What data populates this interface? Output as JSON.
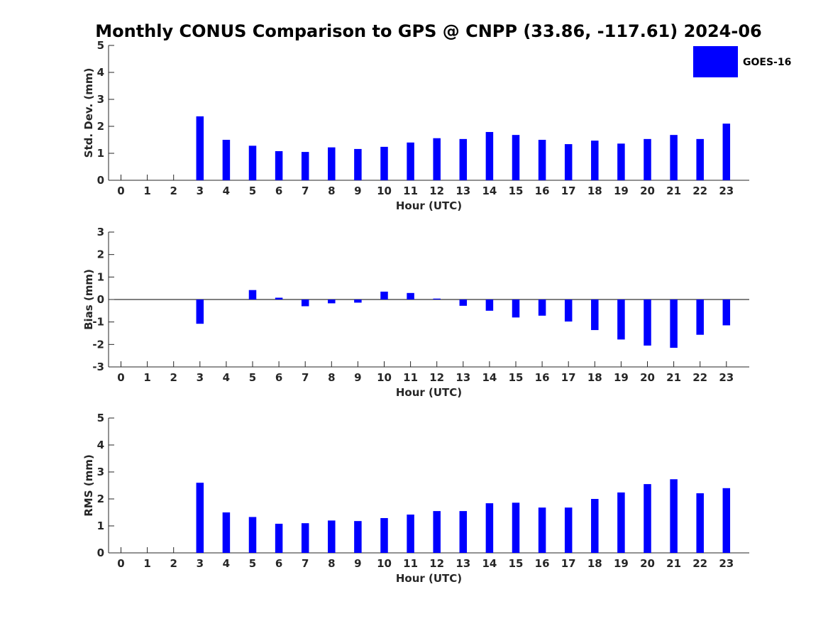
{
  "chart_data": {
    "title": "Monthly CONUS Comparison to GPS @ CNPP (33.86, -117.61) 2024-06",
    "legend": {
      "label": "GOES-16",
      "color": "#0000ff",
      "position": "top-right"
    },
    "categories": [
      "0",
      "1",
      "2",
      "3",
      "4",
      "5",
      "6",
      "7",
      "8",
      "9",
      "10",
      "11",
      "12",
      "13",
      "14",
      "15",
      "16",
      "17",
      "18",
      "19",
      "20",
      "21",
      "22",
      "23"
    ],
    "panels": [
      {
        "type": "bar",
        "ylabel": "Std. Dev. (mm)",
        "xlabel": "Hour (UTC)",
        "ylim": [
          0,
          5
        ],
        "yticks": [
          "0",
          "1",
          "2",
          "3",
          "4",
          "5"
        ],
        "values": [
          null,
          null,
          null,
          2.37,
          1.5,
          1.28,
          1.08,
          1.05,
          1.22,
          1.16,
          1.24,
          1.4,
          1.56,
          1.53,
          1.79,
          1.68,
          1.5,
          1.34,
          1.47,
          1.36,
          1.53,
          1.68,
          1.53,
          2.1
        ]
      },
      {
        "type": "bar",
        "ylabel": "Bias (mm)",
        "xlabel": "Hour (UTC)",
        "ylim": [
          -3,
          3
        ],
        "yticks": [
          "-3",
          "-2",
          "-1",
          "0",
          "1",
          "2",
          "3"
        ],
        "values": [
          null,
          null,
          null,
          -1.08,
          null,
          0.42,
          0.08,
          -0.3,
          -0.17,
          -0.14,
          0.35,
          0.29,
          0.04,
          -0.28,
          -0.5,
          -0.8,
          -0.72,
          -0.98,
          -1.36,
          -1.78,
          -2.05,
          -2.15,
          -1.57,
          -1.15
        ]
      },
      {
        "type": "bar",
        "ylabel": "RMS (mm)",
        "xlabel": "Hour (UTC)",
        "ylim": [
          0,
          5
        ],
        "yticks": [
          "0",
          "1",
          "2",
          "3",
          "4",
          "5"
        ],
        "values": [
          null,
          null,
          null,
          2.6,
          1.5,
          1.33,
          1.08,
          1.1,
          1.2,
          1.18,
          1.29,
          1.42,
          1.55,
          1.55,
          1.84,
          1.86,
          1.68,
          1.68,
          2.0,
          2.24,
          2.55,
          2.73,
          2.21,
          2.4
        ]
      }
    ]
  }
}
